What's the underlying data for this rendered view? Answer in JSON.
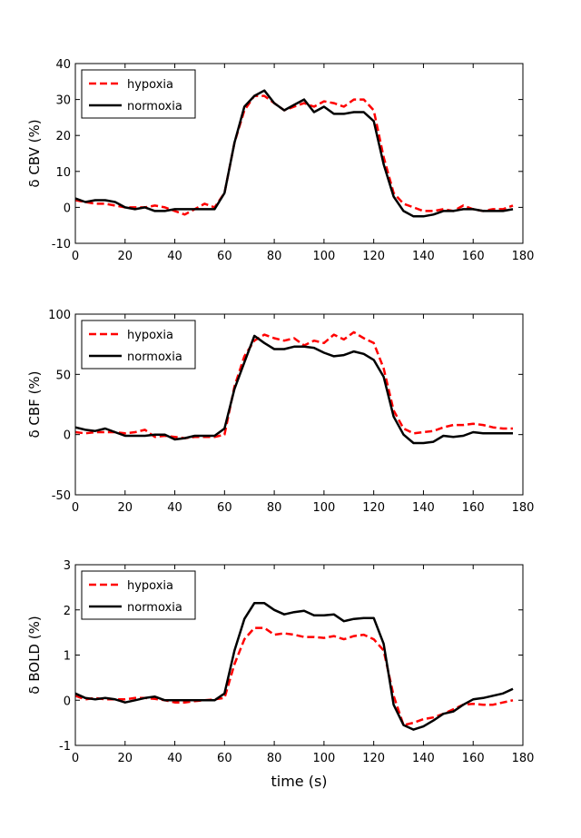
{
  "figure": {
    "xlabel": "time (s)"
  },
  "chart_data": [
    {
      "type": "line",
      "ylabel": "δ CBV (%)",
      "xlim": [
        0,
        180
      ],
      "ylim": [
        -10,
        40
      ],
      "xticks": [
        0,
        20,
        40,
        60,
        80,
        100,
        120,
        140,
        160,
        180
      ],
      "yticks": [
        -10,
        0,
        10,
        20,
        30,
        40
      ],
      "legend_position": "top-left",
      "series": [
        {
          "name": "hypoxia",
          "color": "#ff0000",
          "style": "dashed",
          "x": [
            0,
            4,
            8,
            12,
            16,
            20,
            24,
            28,
            32,
            36,
            40,
            44,
            48,
            52,
            56,
            60,
            64,
            68,
            72,
            76,
            80,
            84,
            88,
            92,
            96,
            100,
            104,
            108,
            112,
            116,
            120,
            124,
            128,
            132,
            136,
            140,
            144,
            148,
            152,
            156,
            160,
            164,
            168,
            172,
            176
          ],
          "y": [
            2,
            1.5,
            1,
            1,
            0.5,
            0,
            0,
            0,
            0.5,
            0,
            -1,
            -2,
            -0.5,
            1,
            0,
            4,
            18,
            27,
            31,
            31,
            29,
            27,
            28,
            29,
            28,
            29.5,
            29,
            28,
            30,
            30,
            27,
            14,
            4,
            1,
            0,
            -1,
            -1,
            -0.5,
            -1,
            0.5,
            -0.5,
            -1,
            -0.5,
            -0.5,
            0.5
          ]
        },
        {
          "name": "normoxia",
          "color": "#000000",
          "style": "solid",
          "x": [
            0,
            4,
            8,
            12,
            16,
            20,
            24,
            28,
            32,
            36,
            40,
            44,
            48,
            52,
            56,
            60,
            64,
            68,
            72,
            76,
            80,
            84,
            88,
            92,
            96,
            100,
            104,
            108,
            112,
            116,
            120,
            124,
            128,
            132,
            136,
            140,
            144,
            148,
            152,
            156,
            160,
            164,
            168,
            172,
            176
          ],
          "y": [
            2.5,
            1.5,
            2,
            2,
            1.5,
            0,
            -0.5,
            0,
            -1,
            -1,
            -0.5,
            -0.5,
            -0.5,
            -0.5,
            -0.5,
            4,
            18,
            28,
            31,
            32.5,
            29,
            27,
            28.5,
            30,
            26.5,
            28,
            26,
            26,
            26.5,
            26.5,
            24,
            12,
            3,
            -1,
            -2.5,
            -2.5,
            -2,
            -1,
            -1,
            -0.5,
            -0.5,
            -1,
            -1,
            -1,
            -0.5
          ]
        }
      ]
    },
    {
      "type": "line",
      "ylabel": "δ CBF (%)",
      "xlim": [
        0,
        180
      ],
      "ylim": [
        -50,
        100
      ],
      "xticks": [
        0,
        20,
        40,
        60,
        80,
        100,
        120,
        140,
        160,
        180
      ],
      "yticks": [
        -50,
        0,
        50,
        100
      ],
      "legend_position": "top-left",
      "series": [
        {
          "name": "hypoxia",
          "color": "#ff0000",
          "style": "dashed",
          "x": [
            0,
            4,
            8,
            12,
            16,
            20,
            24,
            28,
            32,
            36,
            40,
            44,
            48,
            52,
            56,
            60,
            64,
            68,
            72,
            76,
            80,
            84,
            88,
            92,
            96,
            100,
            104,
            108,
            112,
            116,
            120,
            124,
            128,
            132,
            136,
            140,
            144,
            148,
            152,
            156,
            160,
            164,
            168,
            172,
            176
          ],
          "y": [
            2,
            1,
            2,
            2,
            2,
            1,
            2,
            4,
            -2,
            -1,
            -2,
            -3,
            -2,
            -2,
            -2,
            0,
            40,
            65,
            78,
            83,
            80,
            78,
            80,
            74,
            78,
            76,
            83,
            79,
            85,
            80,
            76,
            55,
            20,
            5,
            1,
            2,
            3,
            6,
            8,
            8,
            9,
            8,
            6,
            5,
            5
          ]
        },
        {
          "name": "normoxia",
          "color": "#000000",
          "style": "solid",
          "x": [
            0,
            4,
            8,
            12,
            16,
            20,
            24,
            28,
            32,
            36,
            40,
            44,
            48,
            52,
            56,
            60,
            64,
            68,
            72,
            76,
            80,
            84,
            88,
            92,
            96,
            100,
            104,
            108,
            112,
            116,
            120,
            124,
            128,
            132,
            136,
            140,
            144,
            148,
            152,
            156,
            160,
            164,
            168,
            172,
            176
          ],
          "y": [
            6,
            4,
            3,
            5,
            2,
            -1,
            -1,
            -1,
            0,
            0,
            -4,
            -3,
            -1,
            -1,
            -1,
            5,
            38,
            60,
            82,
            76,
            71,
            71,
            73,
            73,
            72,
            68,
            65,
            66,
            69,
            67,
            62,
            48,
            15,
            0,
            -7,
            -7,
            -6,
            -1,
            -2,
            -1,
            2,
            1,
            1,
            1,
            1
          ]
        }
      ]
    },
    {
      "type": "line",
      "ylabel": "δ BOLD (%)",
      "xlim": [
        0,
        180
      ],
      "ylim": [
        -1,
        3
      ],
      "xticks": [
        0,
        20,
        40,
        60,
        80,
        100,
        120,
        140,
        160,
        180
      ],
      "yticks": [
        -1,
        0,
        1,
        2,
        3
      ],
      "legend_position": "top-left",
      "series": [
        {
          "name": "hypoxia",
          "color": "#ff0000",
          "style": "dashed",
          "x": [
            0,
            4,
            8,
            12,
            16,
            20,
            24,
            28,
            32,
            36,
            40,
            44,
            48,
            52,
            56,
            60,
            64,
            68,
            72,
            76,
            80,
            84,
            88,
            92,
            96,
            100,
            104,
            108,
            112,
            116,
            120,
            124,
            128,
            132,
            136,
            140,
            144,
            148,
            152,
            156,
            160,
            164,
            168,
            172,
            176
          ],
          "y": [
            0.1,
            0.02,
            0.05,
            0.02,
            0.02,
            0.02,
            0.05,
            0.05,
            0.03,
            0,
            -0.05,
            -0.05,
            -0.02,
            0,
            0.02,
            0.05,
            0.8,
            1.35,
            1.6,
            1.6,
            1.45,
            1.48,
            1.45,
            1.4,
            1.4,
            1.38,
            1.42,
            1.35,
            1.42,
            1.45,
            1.35,
            1.1,
            0.1,
            -0.55,
            -0.5,
            -0.42,
            -0.38,
            -0.3,
            -0.2,
            -0.1,
            -0.08,
            -0.1,
            -0.1,
            -0.05,
            0
          ]
        },
        {
          "name": "normoxia",
          "color": "#000000",
          "style": "solid",
          "x": [
            0,
            4,
            8,
            12,
            16,
            20,
            24,
            28,
            32,
            36,
            40,
            44,
            48,
            52,
            56,
            60,
            64,
            68,
            72,
            76,
            80,
            84,
            88,
            92,
            96,
            100,
            104,
            108,
            112,
            116,
            120,
            124,
            128,
            132,
            136,
            140,
            144,
            148,
            152,
            156,
            160,
            164,
            168,
            172,
            176
          ],
          "y": [
            0.15,
            0.05,
            0.02,
            0.05,
            0.02,
            -0.05,
            0,
            0.05,
            0.08,
            0,
            0,
            0,
            0,
            0,
            0,
            0.15,
            1.1,
            1.8,
            2.15,
            2.15,
            2.0,
            1.9,
            1.95,
            1.98,
            1.88,
            1.88,
            1.9,
            1.75,
            1.8,
            1.82,
            1.82,
            1.25,
            -0.1,
            -0.55,
            -0.65,
            -0.58,
            -0.45,
            -0.3,
            -0.25,
            -0.1,
            0.02,
            0.05,
            0.1,
            0.15,
            0.25
          ]
        }
      ]
    }
  ]
}
